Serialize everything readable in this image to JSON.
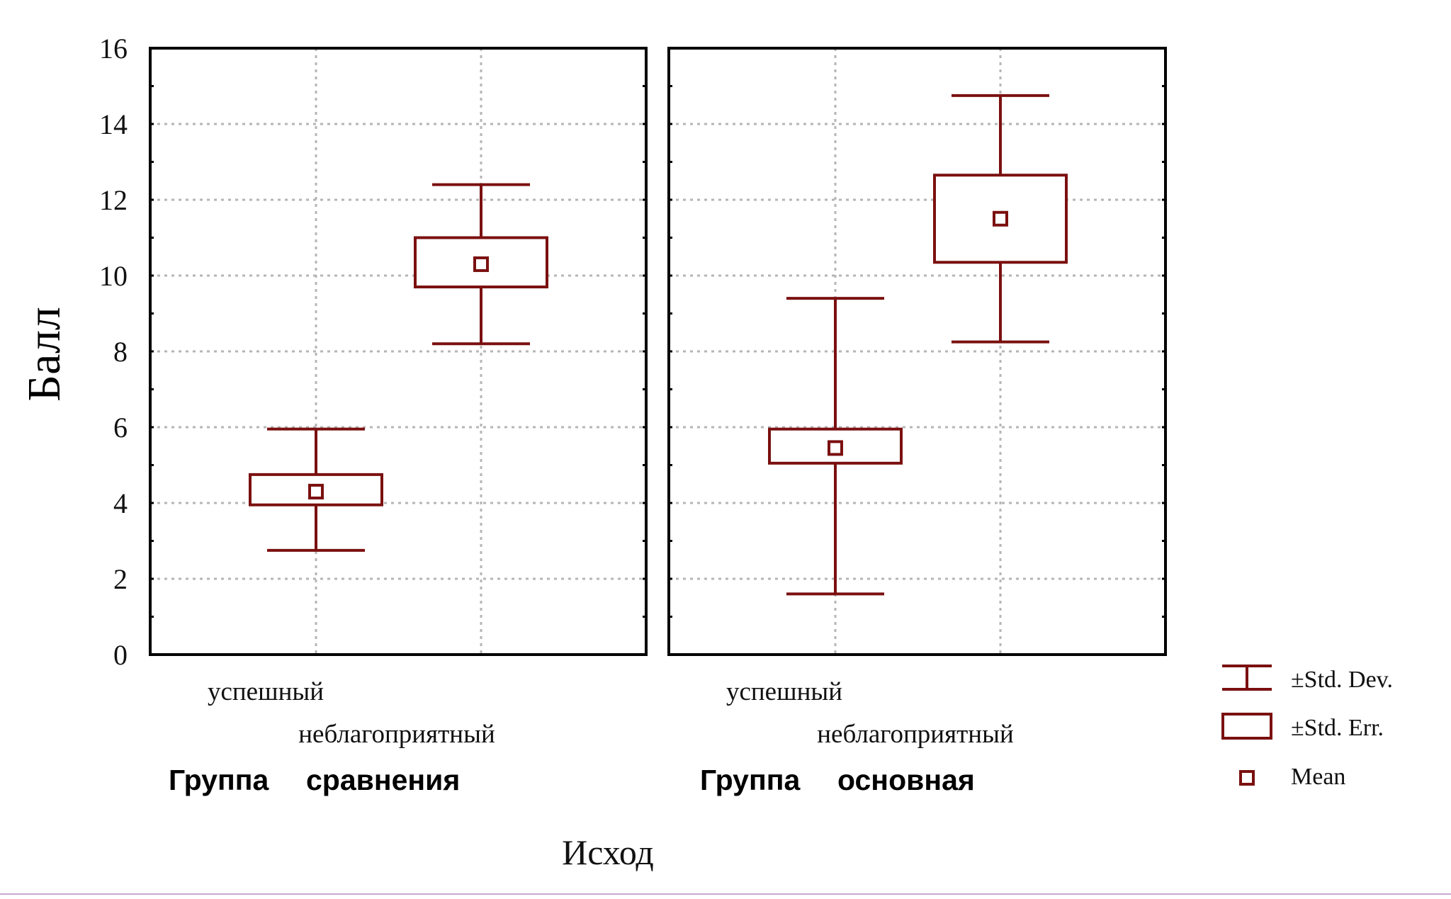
{
  "chart_data": {
    "type": "box",
    "ylabel": "Балл",
    "xlabel": "Исход",
    "ylim": [
      0,
      16
    ],
    "yticks": [
      0,
      2,
      4,
      6,
      8,
      10,
      12,
      14,
      16
    ],
    "grid": true,
    "legend_position": "right",
    "color": "#7b1010",
    "categories": [
      "успешный",
      "неблагоприятный"
    ],
    "panels": [
      {
        "group_label": [
          "Группа",
          "сравнения"
        ],
        "boxes": [
          {
            "category": "успешный",
            "mean": 4.3,
            "se_low": 3.95,
            "se_high": 4.75,
            "sd_low": 2.75,
            "sd_high": 5.95
          },
          {
            "category": "неблагоприятный",
            "mean": 10.3,
            "se_low": 9.7,
            "se_high": 11.0,
            "sd_low": 8.2,
            "sd_high": 12.4
          }
        ]
      },
      {
        "group_label": [
          "Группа",
          "основная"
        ],
        "boxes": [
          {
            "category": "успешный",
            "mean": 5.45,
            "se_low": 5.05,
            "se_high": 5.95,
            "sd_low": 1.6,
            "sd_high": 9.4
          },
          {
            "category": "неблагоприятный",
            "mean": 11.5,
            "se_low": 10.35,
            "se_high": 12.65,
            "sd_low": 8.25,
            "sd_high": 14.75
          }
        ]
      }
    ],
    "legend": [
      "±Std. Dev.",
      "±Std. Err.",
      "Mean"
    ]
  }
}
